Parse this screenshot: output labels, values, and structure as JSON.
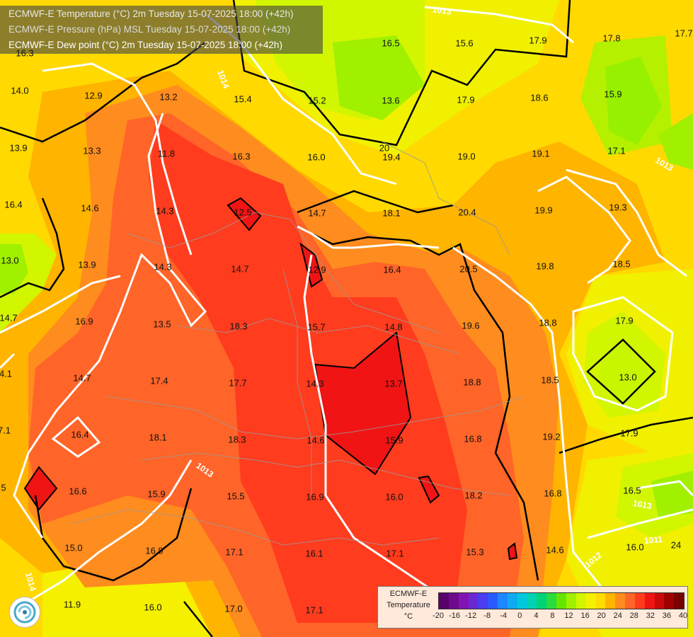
{
  "header": {
    "line1": "ECMWF-E Temperature (°C) 2m Tuesday 15-07-2025 18:00 (+42h)",
    "line2": "ECMWF-E Pressure (hPa) MSL Tuesday 15-07-2025 18:00 (+42h)",
    "line3": "ECMWF-E Dew point (°C) 2m Tuesday 15-07-2025 18:00 (+42h)"
  },
  "temperature_labels": [
    "16.3",
    "16.5",
    "15.6",
    "17.9",
    "17.8",
    "17.7",
    "14.0",
    "12.9",
    "13.2",
    "15.4",
    "15.2",
    "13.6",
    "17.9",
    "18.6",
    "15.9",
    "13.3",
    "11.8",
    "16.3",
    "16.0",
    "20",
    "19.4",
    "19.0",
    "19.1",
    "17.1",
    "13.9",
    "16.4",
    "14.6",
    "14.3",
    "12.5",
    "14.7",
    "18.1",
    "20.4",
    "19.9",
    "19.3",
    "13.0",
    "13.9",
    "14.3",
    "14.7",
    "12.9",
    "16.4",
    "20.5",
    "19.8",
    "18.5",
    "14.7",
    "16.9",
    "13.5",
    "18.3",
    "15.7",
    "14.8",
    "19.6",
    "18.8",
    "17.9",
    "4.1",
    "14.7",
    "17.4",
    "17.7",
    "14.3",
    "13.7",
    "18.8",
    "18.5",
    "13.0",
    "7.1",
    "16.4",
    "18.1",
    "18.3",
    "14.6",
    "15.9",
    "16.8",
    "19.2",
    "17.9",
    "5",
    "16.6",
    "15.9",
    "15.5",
    "16.9",
    "16.0",
    "18.2",
    "16.8",
    "16.5",
    "15.0",
    "16.9",
    "17.1",
    "16.1",
    "17.1",
    "15.3",
    "14.6",
    "16.0",
    "24",
    "11.9",
    "16.0",
    "17.0",
    "17.1"
  ],
  "isobars": [
    "1013",
    "1014",
    "1013",
    "1014",
    "1013",
    "1013",
    "1011",
    "1012",
    "1013"
  ],
  "legend": {
    "title_line1": "ECMWF-E",
    "title_line2": "Temperature",
    "unit": "°C",
    "ticks": [
      "-20",
      "-16",
      "-12",
      "-8",
      "-4",
      "0",
      "4",
      "8",
      "12",
      "16",
      "20",
      "24",
      "28",
      "32",
      "36",
      "40"
    ],
    "colors": [
      "#5a006a",
      "#6e0a8c",
      "#8214b4",
      "#6a28d2",
      "#4a3cf0",
      "#2a5aff",
      "#1e86ff",
      "#10aaf0",
      "#00c8dc",
      "#00d2b4",
      "#00d278",
      "#28dc3c",
      "#64e600",
      "#a0f000",
      "#d2f500",
      "#f5f000",
      "#ffdc00",
      "#ffb400",
      "#ff8c1e",
      "#ff6428",
      "#ff3c1e",
      "#f01414",
      "#c80a0a",
      "#a00000",
      "#780000"
    ]
  }
}
